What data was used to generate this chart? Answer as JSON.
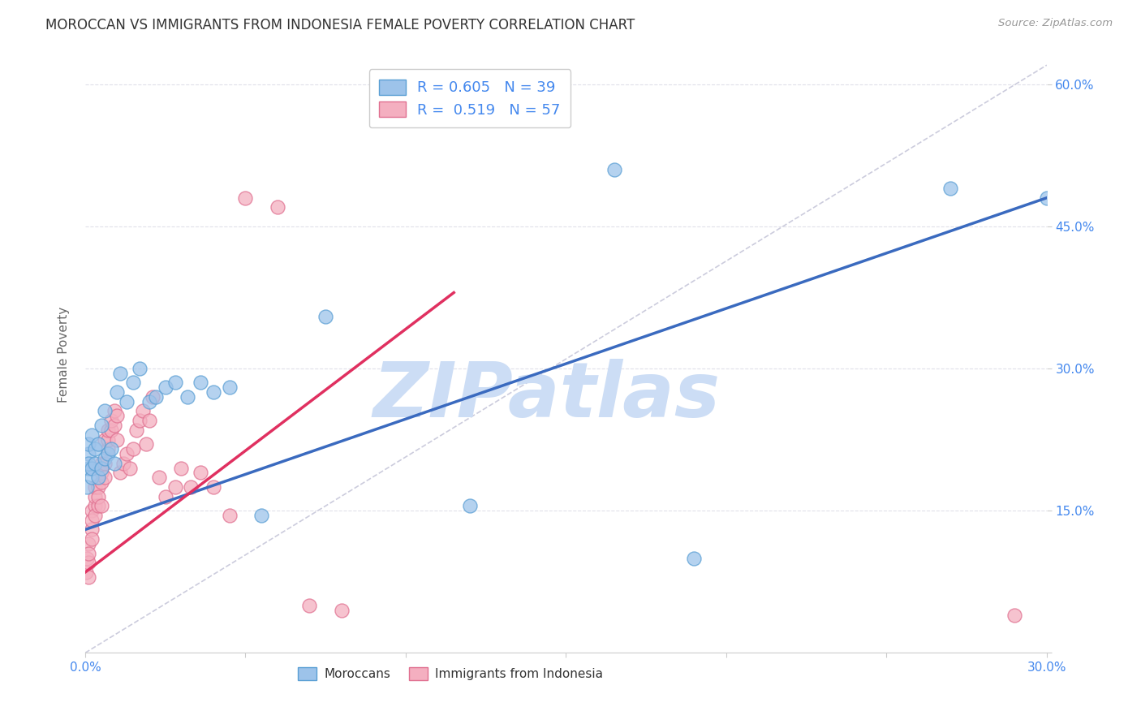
{
  "title": "MOROCCAN VS IMMIGRANTS FROM INDONESIA FEMALE POVERTY CORRELATION CHART",
  "source": "Source: ZipAtlas.com",
  "ylabel": "Female Poverty",
  "watermark": "ZIPatlas",
  "xmin": 0.0,
  "xmax": 0.3,
  "ymin": 0.0,
  "ymax": 0.63,
  "xticks": [
    0.0,
    0.05,
    0.1,
    0.15,
    0.2,
    0.25,
    0.3
  ],
  "yticks": [
    0.0,
    0.15,
    0.3,
    0.45,
    0.6
  ],
  "legend1_label": "R = 0.605   N = 39",
  "legend2_label": "R =  0.519   N = 57",
  "legend_bottom1": "Moroccans",
  "legend_bottom2": "Immigrants from Indonesia",
  "blue_color": "#9dc3ea",
  "pink_color": "#f4afc0",
  "blue_edge": "#5a9fd4",
  "pink_edge": "#e07090",
  "blue_line_color": "#3a6abf",
  "pink_line_color": "#e03060",
  "dashed_line_color": "#ccccdd",
  "grid_color": "#e0e0ea",
  "title_color": "#333333",
  "source_color": "#999999",
  "axis_label_color": "#666666",
  "tick_color": "#4488ee",
  "watermark_color": "#ccddf5",
  "background_color": "#ffffff",
  "blue_line_x": [
    0.0,
    0.3
  ],
  "blue_line_y": [
    0.13,
    0.48
  ],
  "pink_line_x": [
    0.0,
    0.115
  ],
  "pink_line_y": [
    0.085,
    0.38
  ],
  "diag_line_x": [
    0.0,
    0.3
  ],
  "diag_line_y": [
    0.0,
    0.62
  ],
  "blue_scatter_x": [
    0.0005,
    0.001,
    0.001,
    0.001,
    0.001,
    0.002,
    0.002,
    0.002,
    0.003,
    0.003,
    0.004,
    0.004,
    0.005,
    0.005,
    0.006,
    0.006,
    0.007,
    0.008,
    0.009,
    0.01,
    0.011,
    0.013,
    0.015,
    0.017,
    0.02,
    0.022,
    0.025,
    0.028,
    0.032,
    0.036,
    0.04,
    0.045,
    0.055,
    0.075,
    0.12,
    0.165,
    0.19,
    0.27,
    0.3
  ],
  "blue_scatter_y": [
    0.175,
    0.195,
    0.21,
    0.2,
    0.22,
    0.185,
    0.23,
    0.195,
    0.2,
    0.215,
    0.185,
    0.22,
    0.195,
    0.24,
    0.205,
    0.255,
    0.21,
    0.215,
    0.2,
    0.275,
    0.295,
    0.265,
    0.285,
    0.3,
    0.265,
    0.27,
    0.28,
    0.285,
    0.27,
    0.285,
    0.275,
    0.28,
    0.145,
    0.355,
    0.155,
    0.51,
    0.1,
    0.49,
    0.48
  ],
  "pink_scatter_x": [
    0.0003,
    0.0005,
    0.001,
    0.001,
    0.001,
    0.001,
    0.002,
    0.002,
    0.002,
    0.002,
    0.003,
    0.003,
    0.003,
    0.003,
    0.004,
    0.004,
    0.004,
    0.005,
    0.005,
    0.005,
    0.005,
    0.006,
    0.006,
    0.006,
    0.007,
    0.007,
    0.007,
    0.008,
    0.008,
    0.009,
    0.009,
    0.01,
    0.01,
    0.011,
    0.012,
    0.013,
    0.014,
    0.015,
    0.016,
    0.017,
    0.018,
    0.019,
    0.02,
    0.021,
    0.023,
    0.025,
    0.028,
    0.03,
    0.033,
    0.036,
    0.04,
    0.045,
    0.05,
    0.06,
    0.07,
    0.08,
    0.29
  ],
  "pink_scatter_y": [
    0.085,
    0.1,
    0.115,
    0.095,
    0.105,
    0.08,
    0.13,
    0.12,
    0.15,
    0.14,
    0.155,
    0.145,
    0.165,
    0.175,
    0.155,
    0.175,
    0.165,
    0.155,
    0.18,
    0.2,
    0.19,
    0.2,
    0.225,
    0.185,
    0.215,
    0.225,
    0.235,
    0.235,
    0.245,
    0.24,
    0.255,
    0.225,
    0.25,
    0.19,
    0.2,
    0.21,
    0.195,
    0.215,
    0.235,
    0.245,
    0.255,
    0.22,
    0.245,
    0.27,
    0.185,
    0.165,
    0.175,
    0.195,
    0.175,
    0.19,
    0.175,
    0.145,
    0.48,
    0.47,
    0.05,
    0.045,
    0.04
  ]
}
